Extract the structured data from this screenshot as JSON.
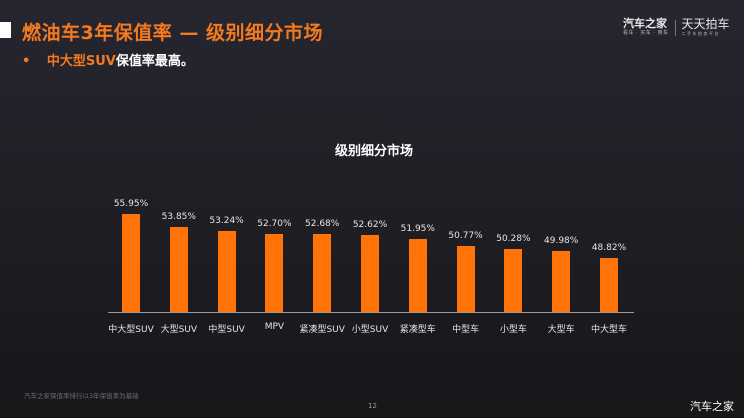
{
  "header": {
    "title": "燃油车3年保值率 — 级别细分市场",
    "bullet_highlight": "中大型SUV",
    "bullet_rest": "保值率最高。",
    "logo_autohome": "汽车之家",
    "logo_autohome_sub": "看车 · 买车 · 用车",
    "logo_ttpc": "天天拍车",
    "logo_ttpc_sub": "二手车拍卖平台"
  },
  "chart_data": {
    "type": "bar",
    "title": "级别细分市场",
    "xlabel": "",
    "ylabel": "",
    "categories": [
      "中大型SUV",
      "大型SUV",
      "中型SUV",
      "MPV",
      "紧凑型SUV",
      "小型SUV",
      "紧凑型车",
      "中型车",
      "小型车",
      "大型车",
      "中大型车"
    ],
    "values": [
      55.95,
      53.85,
      53.24,
      52.7,
      52.68,
      52.62,
      51.95,
      50.77,
      50.28,
      49.98,
      48.82
    ],
    "labels": [
      "55.95%",
      "53.85%",
      "53.24%",
      "52.70%",
      "52.68%",
      "52.62%",
      "51.95%",
      "50.77%",
      "50.28%",
      "49.98%",
      "48.82%"
    ],
    "unit": "%",
    "grid": false,
    "legend": "none",
    "bar_color": "#ff7309"
  },
  "footer": {
    "note": "汽车之家保值率排行以3年保值率为基础",
    "page": "12",
    "watermark": "汽车之家"
  }
}
